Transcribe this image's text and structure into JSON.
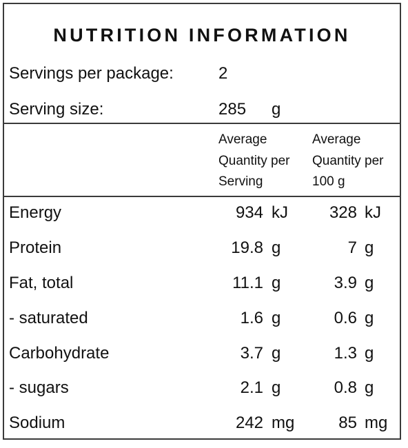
{
  "label": {
    "title": "NUTRITION INFORMATION",
    "servings_per_package_label": "Servings per package:",
    "servings_per_package_value": "2",
    "serving_size_label": "Serving size:",
    "serving_size_value": "285",
    "serving_size_unit": "g",
    "columns": {
      "per_serving": [
        "Average",
        "Quantity per",
        "Serving"
      ],
      "per_100g": [
        "Average",
        "Quantity per",
        "100 g"
      ]
    },
    "rows": [
      {
        "name": "Energy",
        "per_serving": "934",
        "per_serving_unit": "kJ",
        "per_100g": "328",
        "per_100g_unit": "kJ"
      },
      {
        "name": "Protein",
        "per_serving": "19.8",
        "per_serving_unit": "g",
        "per_100g": "7",
        "per_100g_unit": "g"
      },
      {
        "name": "Fat, total",
        "per_serving": "11.1",
        "per_serving_unit": "g",
        "per_100g": "3.9",
        "per_100g_unit": "g"
      },
      {
        "name": "- saturated",
        "per_serving": "1.6",
        "per_serving_unit": "g",
        "per_100g": "0.6",
        "per_100g_unit": "g"
      },
      {
        "name": "Carbohydrate",
        "per_serving": "3.7",
        "per_serving_unit": "g",
        "per_100g": "1.3",
        "per_100g_unit": "g"
      },
      {
        "name": "- sugars",
        "per_serving": "2.1",
        "per_serving_unit": "g",
        "per_100g": "0.8",
        "per_100g_unit": "g"
      },
      {
        "name": "Sodium",
        "per_serving": "242",
        "per_serving_unit": "mg",
        "per_100g": "85",
        "per_100g_unit": "mg"
      }
    ]
  },
  "colors": {
    "border": "#3a3a3a",
    "text": "#111111",
    "background": "#ffffff"
  }
}
